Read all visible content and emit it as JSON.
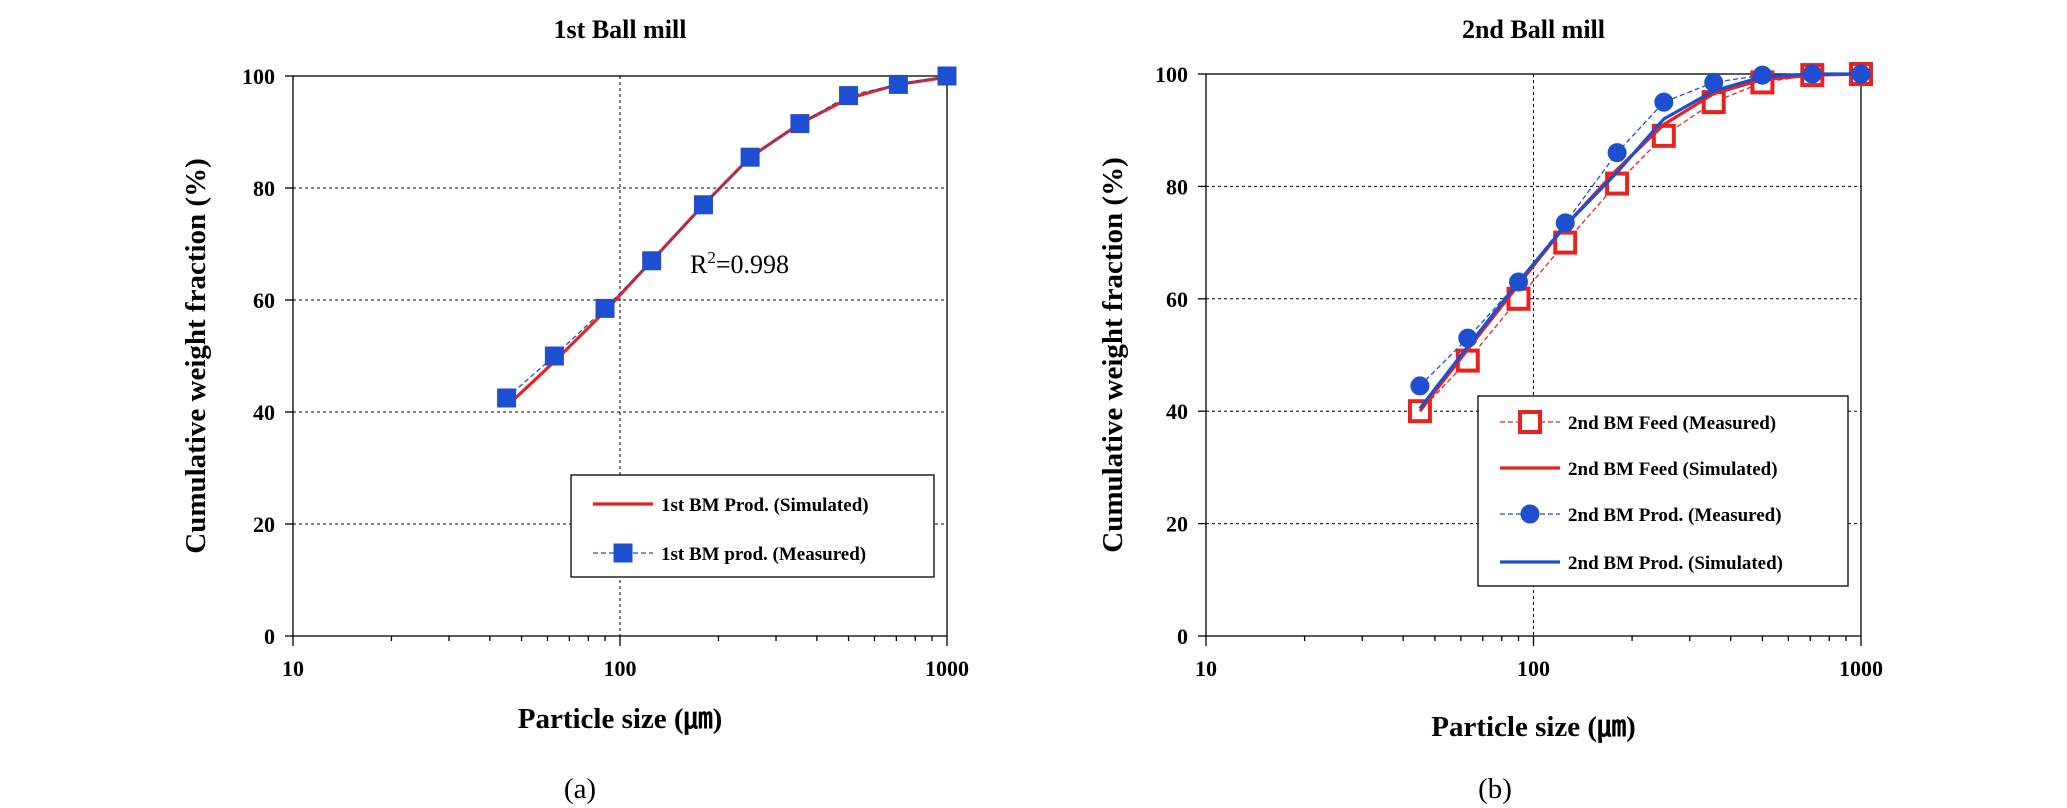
{
  "chart_data": [
    {
      "type": "line",
      "title": "1st Ball mill",
      "xlabel": "Particle size (㎛)",
      "ylabel": "Cumulative weight fraction (%)",
      "xscale": "log",
      "xlim": [
        10,
        1000
      ],
      "ylim": [
        0,
        100
      ],
      "xticks": [
        "10",
        "100",
        "1000"
      ],
      "yticks": [
        "0",
        "20",
        "40",
        "60",
        "80",
        "100"
      ],
      "grid": true,
      "legend_position": "bottom-right",
      "annotation": {
        "text": "R",
        "sup": "2",
        "rest": "=0.998"
      },
      "panel_label": "(a)",
      "series": [
        {
          "name": "1st BM Prod. (Simulated)",
          "color": "#e8221f",
          "style": "solid",
          "marker": "none",
          "x": [
            45,
            63,
            90,
            125,
            180,
            250,
            355,
            500,
            710,
            1000
          ],
          "y": [
            41,
            49,
            58,
            67,
            77,
            85.5,
            91.5,
            96,
            98.5,
            99.8
          ]
        },
        {
          "name": "1st BM prod. (Measured)",
          "color": "#1f4fd1",
          "style": "dashed",
          "marker": "square",
          "x": [
            45,
            63,
            90,
            125,
            180,
            250,
            355,
            500,
            710,
            1000
          ],
          "y": [
            42.5,
            50,
            58.5,
            67,
            77,
            85.5,
            91.5,
            96.5,
            98.5,
            100
          ]
        }
      ]
    },
    {
      "type": "line",
      "title": "2nd Ball mill",
      "xlabel": "Particle size (㎛)",
      "ylabel": "Cumulative weight fraction (%)",
      "xscale": "log",
      "xlim": [
        10,
        1000
      ],
      "ylim": [
        0,
        100
      ],
      "xticks": [
        "10",
        "100",
        "1000"
      ],
      "yticks": [
        "0",
        "20",
        "40",
        "60",
        "80",
        "100"
      ],
      "grid": true,
      "legend_position": "bottom-right",
      "panel_label": "(b)",
      "series": [
        {
          "name": "2nd BM Feed (Measured)",
          "color": "#e8221f",
          "style": "dashed",
          "marker": "open-square",
          "x": [
            45,
            63,
            90,
            125,
            180,
            250,
            355,
            500,
            710,
            1000
          ],
          "y": [
            40,
            49,
            60,
            70,
            80.5,
            89,
            95,
            98.5,
            99.8,
            100
          ]
        },
        {
          "name": "2nd BM Feed (Simulated)",
          "color": "#e8221f",
          "style": "solid",
          "marker": "none",
          "x": [
            45,
            63,
            90,
            125,
            180,
            250,
            355,
            500,
            710,
            1000
          ],
          "y": [
            40,
            51,
            62.5,
            73,
            83,
            91,
            96.5,
            99,
            99.8,
            100
          ]
        },
        {
          "name": "2nd BM Prod. (Measured)",
          "color": "#1f4fd1",
          "style": "dashed",
          "marker": "circle",
          "x": [
            45,
            63,
            90,
            125,
            180,
            250,
            355,
            500,
            710,
            1000
          ],
          "y": [
            44.5,
            53,
            63,
            73.5,
            86,
            95,
            98.5,
            99.8,
            100,
            100
          ]
        },
        {
          "name": "2nd BM Prod. (Simulated)",
          "color": "#1f4fd1",
          "style": "solid",
          "marker": "none",
          "x": [
            45,
            63,
            90,
            125,
            180,
            250,
            355,
            500,
            710,
            1000
          ],
          "y": [
            40.5,
            51.5,
            63,
            73,
            82.5,
            92,
            97,
            99.5,
            100,
            100
          ]
        }
      ]
    }
  ]
}
